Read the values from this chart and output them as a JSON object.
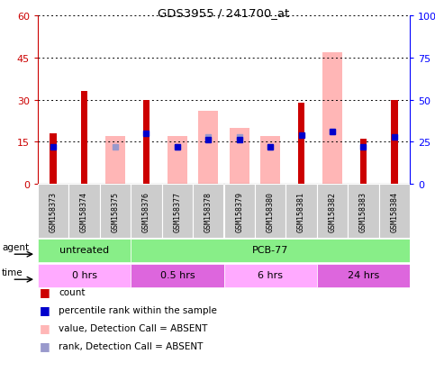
{
  "title": "GDS3955 / 241700_at",
  "samples": [
    "GSM158373",
    "GSM158374",
    "GSM158375",
    "GSM158376",
    "GSM158377",
    "GSM158378",
    "GSM158379",
    "GSM158380",
    "GSM158381",
    "GSM158382",
    "GSM158383",
    "GSM158384"
  ],
  "count_values": [
    18,
    33,
    null,
    30,
    null,
    null,
    null,
    null,
    29,
    null,
    16,
    30
  ],
  "pink_bar_values": [
    null,
    null,
    17,
    null,
    17,
    26,
    20,
    17,
    null,
    47,
    null,
    null
  ],
  "blue_square_values": [
    22,
    null,
    null,
    30,
    22,
    26,
    26,
    22,
    29,
    31,
    22,
    28
  ],
  "lavender_square_values": [
    null,
    null,
    22,
    null,
    22,
    28,
    28,
    22,
    null,
    31,
    null,
    null
  ],
  "ylim_left": [
    0,
    60
  ],
  "ylim_right": [
    0,
    100
  ],
  "yticks_left": [
    0,
    15,
    30,
    45,
    60
  ],
  "yticks_right": [
    0,
    25,
    50,
    75,
    100
  ],
  "ytick_labels_right": [
    "0",
    "25",
    "50",
    "75",
    "100%"
  ],
  "count_color": "#cc0000",
  "pink_bar_color": "#ffb6b6",
  "blue_square_color": "#0000cc",
  "lavender_square_color": "#9999cc",
  "bg_color": "#ffffff",
  "sample_bg_color": "#cccccc",
  "agent_untreated_color": "#88ee88",
  "agent_pcb_color": "#88ee88",
  "time_color_0": "#ffaaff",
  "time_color_05": "#dd66dd",
  "time_color_6": "#ffaaff",
  "time_color_24": "#dd66dd",
  "legend_items": [
    {
      "color": "#cc0000",
      "label": "count"
    },
    {
      "color": "#0000cc",
      "label": "percentile rank within the sample"
    },
    {
      "color": "#ffb6b6",
      "label": "value, Detection Call = ABSENT"
    },
    {
      "color": "#9999cc",
      "label": "rank, Detection Call = ABSENT"
    }
  ]
}
